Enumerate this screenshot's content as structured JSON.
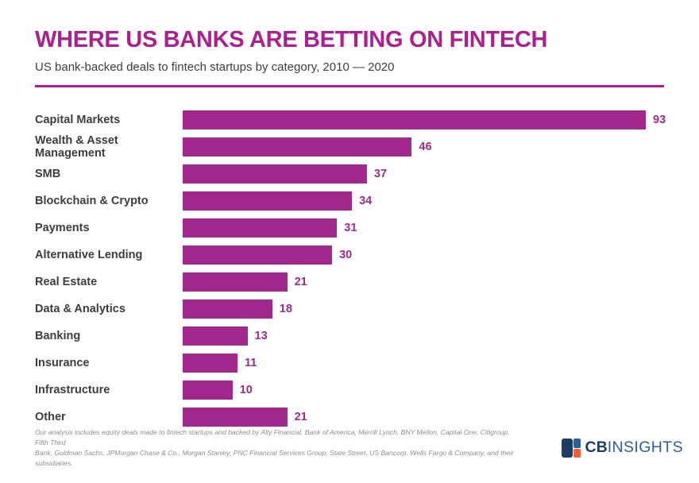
{
  "colors": {
    "accent": "#ac1f8e",
    "bar": "#a2288e",
    "label": "#3d3d3d",
    "disclaimer": "#8d8d8d",
    "logo_navy": "#1e3c63",
    "logo_blue": "#2d6097",
    "logo_orange": "#f15f3b"
  },
  "header": {
    "title": "WHERE US BANKS ARE BETTING ON FINTECH",
    "subtitle": "US bank-backed deals to fintech startups by category, 2010 — 2020"
  },
  "chart_data": {
    "type": "bar",
    "orientation": "horizontal",
    "title": "WHERE US BANKS ARE BETTING ON FINTECH",
    "subtitle": "US bank-backed deals to fintech startups by category, 2010 — 2020",
    "xlabel": "",
    "ylabel": "",
    "xlim": [
      0,
      93
    ],
    "grid": false,
    "legend": "none",
    "value_labels_shown": true,
    "bar_color": "#a2288e",
    "categories": [
      "Capital Markets",
      "Wealth & Asset Management",
      "SMB",
      "Blockchain & Crypto",
      "Payments",
      "Alternative Lending",
      "Real Estate",
      "Data & Analytics",
      "Banking",
      "Insurance",
      "Infrastructure",
      "Other"
    ],
    "values": [
      93,
      46,
      37,
      34,
      31,
      30,
      21,
      18,
      13,
      11,
      10,
      21
    ]
  },
  "footer": {
    "disclaimer_line1": "Our analysis includes equity deals made to fintech startups and backed by Ally Financial, Bank of America, Merrill Lynch, BNY Mellon, Capital One, Citigroup, Fifth Third",
    "disclaimer_line2": "Bank, Goldman Sachs, JPMorgan Chase & Co., Morgan Stanley, PNC Financial Services Group, State Street, US Bancorp, Wells Fargo & Company, and their subsidiaries.",
    "logo": {
      "cb": "CB",
      "insights": "INSIGHTS",
      "mark_icon": "cbinsights-blocks-icon"
    }
  }
}
